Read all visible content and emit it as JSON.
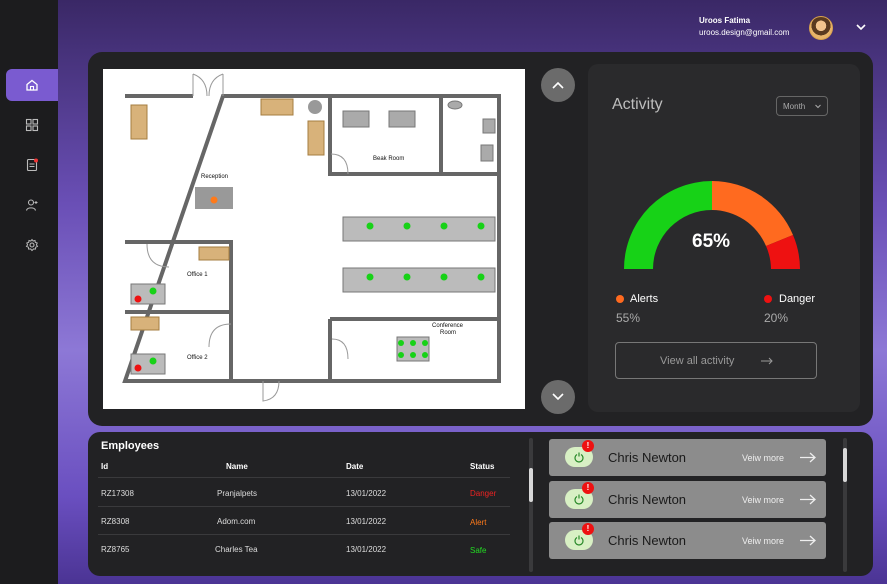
{
  "header": {
    "user_name": "Uroos Fatima",
    "user_email": "uroos.design@gmail.com"
  },
  "sidebar": {
    "items": [
      {
        "icon": "home-icon",
        "active": true
      },
      {
        "icon": "grid-icon",
        "active": false
      },
      {
        "icon": "report-icon",
        "active": false
      },
      {
        "icon": "user-add-icon",
        "active": false
      },
      {
        "icon": "gear-icon",
        "active": false
      }
    ]
  },
  "floorplan": {
    "rooms": {
      "reception": "Reception",
      "break_room": "Beak Room",
      "office1": "Office 1",
      "office2": "Office 2",
      "conference_line1": "Conference",
      "conference_line2": "Room"
    }
  },
  "activity": {
    "title": "Activity",
    "period": "Month",
    "gauge_value": "65%",
    "alerts_label": "Alerts",
    "alerts_pct": "55%",
    "danger_label": "Danger",
    "danger_pct": "20%",
    "view_all": "View all activity",
    "colors": {
      "safe": "#17d217",
      "alert": "#ff6a1f",
      "danger": "#ee1111"
    }
  },
  "employees": {
    "title": "Employees",
    "columns": [
      "Id",
      "Name",
      "Date",
      "Status"
    ],
    "rows": [
      {
        "id": "RZ17308",
        "name": "Pranjalpets",
        "date": "13/01/2022",
        "status": "Danger",
        "status_color": "#ee2222"
      },
      {
        "id": "RZ8308",
        "name": "Adom.com",
        "date": "13/01/2022",
        "status": "Alert",
        "status_color": "#ff7a1a"
      },
      {
        "id": "RZ8765",
        "name": "Charles Tea",
        "date": "13/01/2022",
        "status": "Safe",
        "status_color": "#22dd22"
      }
    ]
  },
  "alerts": [
    {
      "name": "Chris Newton",
      "more": "Veiw more",
      "badge": "!"
    },
    {
      "name": "Chris Newton",
      "more": "Veiw more",
      "badge": "!"
    },
    {
      "name": "Chris Newton",
      "more": "Veiw more",
      "badge": "!"
    }
  ]
}
